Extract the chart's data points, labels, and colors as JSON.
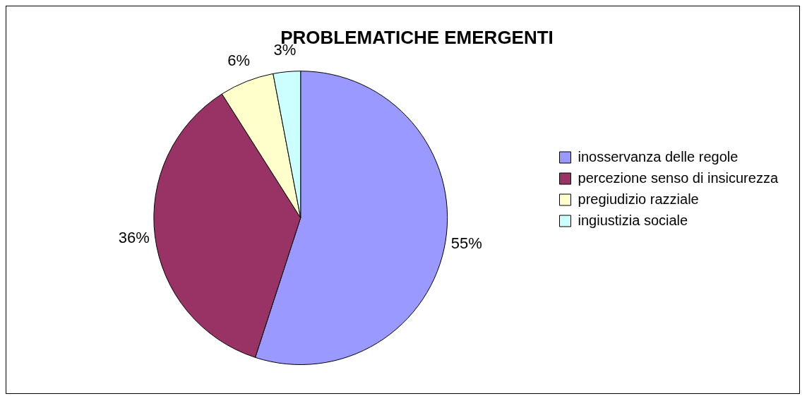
{
  "chart_data": {
    "type": "pie",
    "title": "PROBLEMATICHE EMERGENTI",
    "categories": [
      "inosservanza delle regole",
      "percezione senso di insicurezza",
      "pregiudizio razziale",
      "ingiustizia sociale"
    ],
    "values": [
      55,
      36,
      6,
      3
    ],
    "colors": [
      "#9999ff",
      "#993366",
      "#ffffcc",
      "#ccffff"
    ],
    "value_labels": [
      "55%",
      "36%",
      "6%",
      "3%"
    ],
    "legend": "right"
  }
}
